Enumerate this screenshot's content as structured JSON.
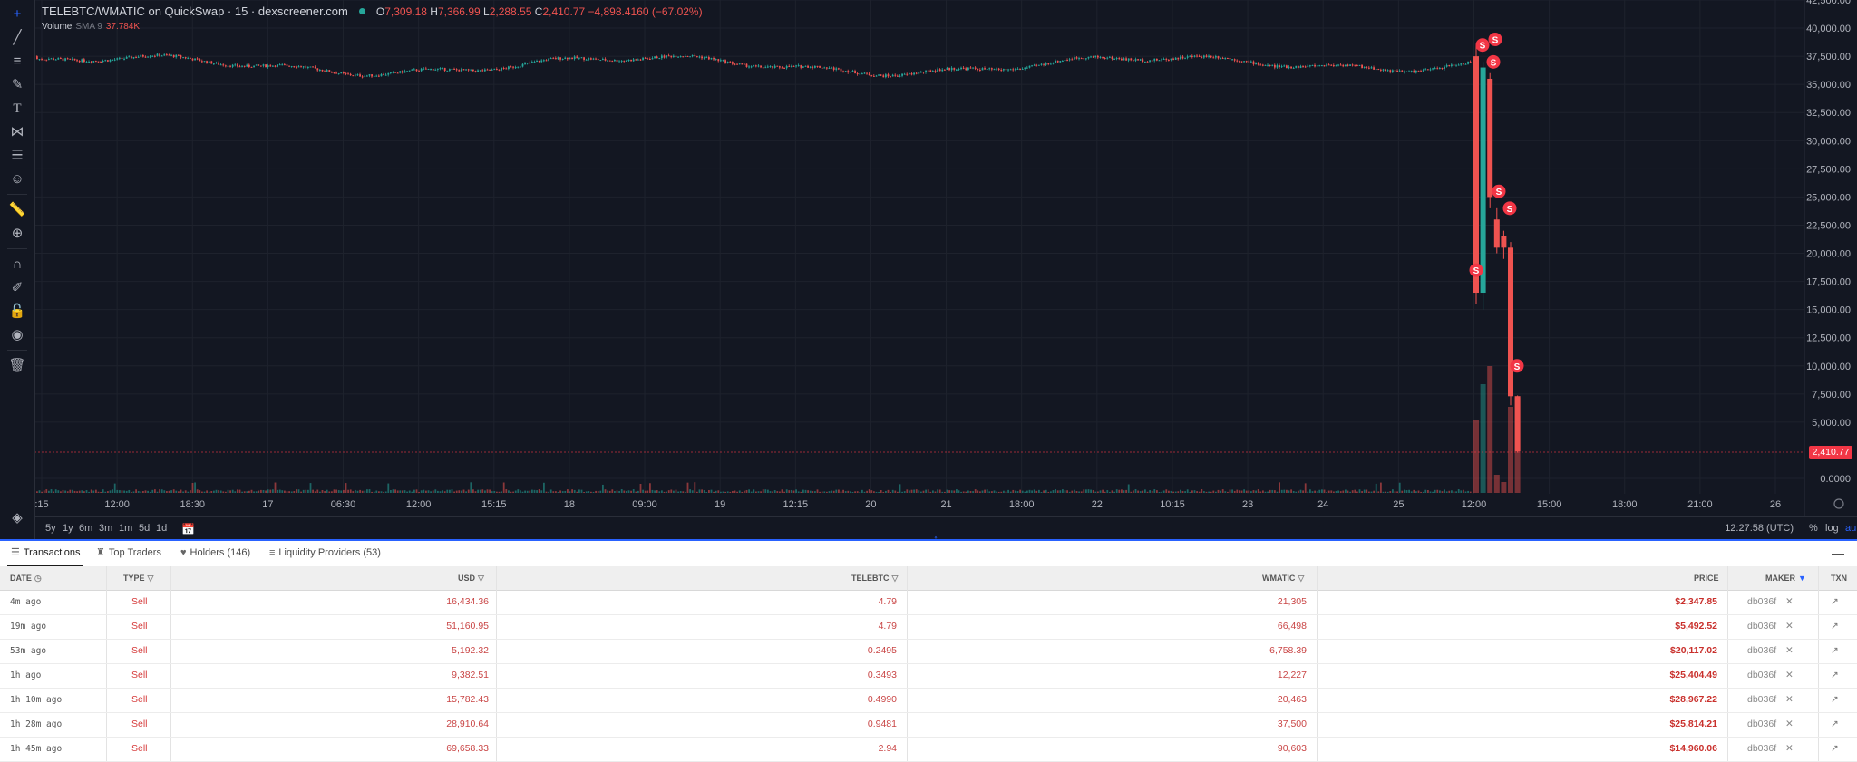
{
  "legend": {
    "symbol": "TELEBTC/WMATIC on QuickSwap · 15 · dexscreener.com",
    "o_label": "O",
    "o_value": "7,309.18",
    "h_label": "H",
    "h_value": "7,366.99",
    "l_label": "L",
    "l_value": "2,288.55",
    "c_label": "C",
    "c_value": "2,410.77 −4,898.4160 (−67.02%)",
    "volume_label": "Volume",
    "sma_label": "SMA 9",
    "volume_value": "37.784K"
  },
  "price_axis": {
    "ticks": [
      "42,500.00",
      "40,000.00",
      "37,500.00",
      "35,000.00",
      "32,500.00",
      "30,000.00",
      "27,500.00",
      "25,000.00",
      "22,500.00",
      "20,000.00",
      "17,500.00",
      "15,000.00",
      "12,500.00",
      "10,000.00",
      "7,500.00",
      "5,000.00",
      "0.0000"
    ],
    "last_price": "2,410.77"
  },
  "time_axis": {
    "ticks": [
      ":15",
      "12:00",
      "18:30",
      "17",
      "06:30",
      "12:00",
      "15:15",
      "18",
      "09:00",
      "19",
      "12:15",
      "20",
      "21",
      "18:00",
      "22",
      "10:15",
      "23",
      "24",
      "25",
      "12:00",
      "15:00",
      "18:00",
      "21:00",
      "26"
    ]
  },
  "trade_marker_label": "S",
  "colors": {
    "up": "#26a69a",
    "down": "#ef5350",
    "background": "#131722",
    "accent": "#2962ff"
  },
  "chart_data": {
    "type": "candlestick",
    "title": "TELEBTC/WMATIC on QuickSwap · 15 · dexscreener.com",
    "ylim": [
      0,
      42500
    ],
    "grid": true,
    "ohlc_last": {
      "open": 7309.18,
      "high": 7366.99,
      "low": 2288.55,
      "close": 2410.77
    },
    "baseline_level": 37500,
    "crash_candles": [
      {
        "open": 37500,
        "high": 38500,
        "low": 15500,
        "close": 16500
      },
      {
        "open": 16500,
        "high": 37000,
        "low": 15000,
        "close": 36500
      },
      {
        "open": 35500,
        "high": 36000,
        "low": 24000,
        "close": 25000
      },
      {
        "open": 23000,
        "high": 24000,
        "low": 20000,
        "close": 20500
      },
      {
        "open": 21500,
        "high": 22000,
        "low": 19500,
        "close": 20500
      },
      {
        "open": 20500,
        "high": 21000,
        "low": 6500,
        "close": 7300
      },
      {
        "open": 7309.18,
        "high": 7366.99,
        "low": 2288.55,
        "close": 2410.77
      }
    ],
    "sell_markers": [
      38500,
      39000,
      37000,
      18500,
      25500,
      24000,
      10000
    ]
  },
  "bottombar": {
    "ranges": [
      "5y",
      "1y",
      "6m",
      "3m",
      "1m",
      "5d",
      "1d"
    ],
    "clock": "12:27:58 (UTC)",
    "percent": "%",
    "log": "log",
    "auto": "auto"
  },
  "tabs": [
    {
      "label": "Transactions"
    },
    {
      "label": "Top Traders"
    },
    {
      "label": "Holders (146)"
    },
    {
      "label": "Liquidity Providers (53)"
    }
  ],
  "table": {
    "headers": {
      "date": "DATE",
      "type": "TYPE",
      "usd": "USD",
      "telebtc": "TELEBTC",
      "wmatic": "WMATIC",
      "price": "PRICE",
      "maker": "MAKER",
      "txn": "TXN"
    },
    "rows": [
      {
        "date": "4m ago",
        "type": "Sell",
        "usd": "16,434.36",
        "telebtc": "4.79",
        "wmatic": "21,305",
        "price": "$2,347.85",
        "maker": "db036f"
      },
      {
        "date": "19m ago",
        "type": "Sell",
        "usd": "51,160.95",
        "telebtc": "4.79",
        "wmatic": "66,498",
        "price": "$5,492.52",
        "maker": "db036f"
      },
      {
        "date": "53m ago",
        "type": "Sell",
        "usd": "5,192.32",
        "telebtc": "0.2495",
        "wmatic": "6,758.39",
        "price": "$20,117.02",
        "maker": "db036f"
      },
      {
        "date": "1h ago",
        "type": "Sell",
        "usd": "9,382.51",
        "telebtc": "0.3493",
        "wmatic": "12,227",
        "price": "$25,404.49",
        "maker": "db036f"
      },
      {
        "date": "1h 10m ago",
        "type": "Sell",
        "usd": "15,782.43",
        "telebtc": "0.4990",
        "wmatic": "20,463",
        "price": "$28,967.22",
        "maker": "db036f"
      },
      {
        "date": "1h 28m ago",
        "type": "Sell",
        "usd": "28,910.64",
        "telebtc": "0.9481",
        "wmatic": "37,500",
        "price": "$25,814.21",
        "maker": "db036f"
      },
      {
        "date": "1h 45m ago",
        "type": "Sell",
        "usd": "69,658.33",
        "telebtc": "2.94",
        "wmatic": "90,603",
        "price": "$14,960.06",
        "maker": "db036f"
      }
    ]
  }
}
